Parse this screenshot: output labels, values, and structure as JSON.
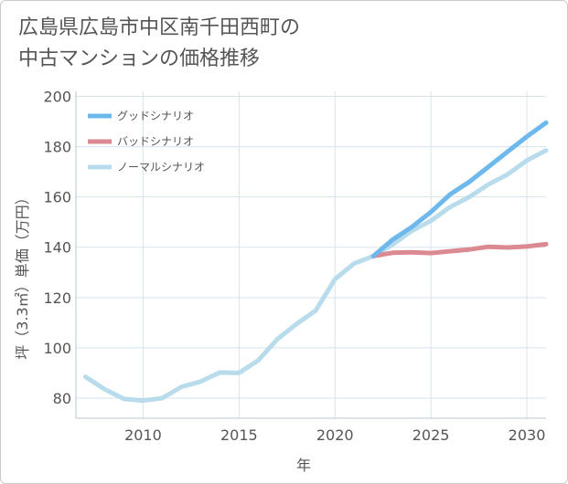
{
  "title_line1": "広島県広島市中区南千田西町の",
  "title_line2": "中古マンションの価格推移",
  "chart_data": {
    "type": "line",
    "title": "広島県広島市中区南千田西町の中古マンションの価格推移",
    "xlabel": "年",
    "ylabel": "坪（3.3㎡）単価（万円）",
    "xlim": [
      2006.5,
      2031
    ],
    "ylim": [
      72,
      202
    ],
    "xticks": [
      2010,
      2015,
      2020,
      2025,
      2030
    ],
    "yticks": [
      80,
      100,
      120,
      140,
      160,
      180,
      200
    ],
    "grid": true,
    "legend_position": "top-left",
    "series": [
      {
        "name": "グッドシナリオ",
        "color": "#6db8ec",
        "x": [
          2022,
          2023,
          2024,
          2025,
          2026,
          2027,
          2028,
          2029,
          2030,
          2031
        ],
        "y": [
          136.5,
          143,
          148,
          154,
          161,
          166,
          172,
          178,
          184,
          189.5
        ]
      },
      {
        "name": "バッドシナリオ",
        "color": "#dc8a92",
        "x": [
          2022,
          2023,
          2024,
          2025,
          2026,
          2027,
          2028,
          2029,
          2030,
          2031
        ],
        "y": [
          136.5,
          137.8,
          138,
          137.7,
          138.4,
          139.1,
          140.2,
          139.9,
          140.3,
          141.2
        ]
      },
      {
        "name": "ノーマルシナリオ",
        "color": "#b8dcec",
        "x": [
          2007,
          2008,
          2009,
          2010,
          2011,
          2012,
          2013,
          2014,
          2015,
          2016,
          2017,
          2018,
          2019,
          2020,
          2021,
          2022,
          2023,
          2024,
          2025,
          2026,
          2027,
          2028,
          2029,
          2030,
          2031
        ],
        "y": [
          88.5,
          83.5,
          79.7,
          79,
          80,
          84.5,
          86.6,
          90.2,
          90,
          95,
          103.5,
          109.5,
          114.8,
          127.3,
          133.5,
          136.5,
          141,
          146.5,
          150.5,
          156,
          160,
          165,
          169,
          174.5,
          178.5
        ]
      }
    ]
  }
}
